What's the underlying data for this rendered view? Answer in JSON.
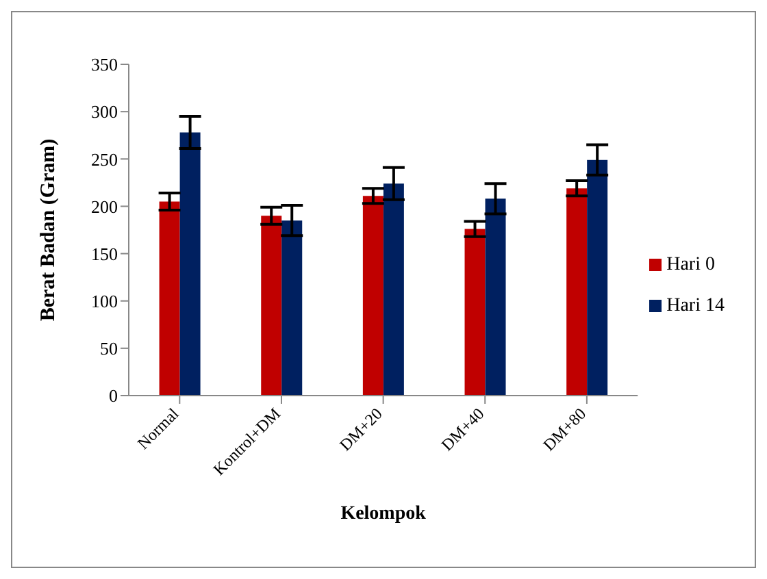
{
  "chart_data": {
    "type": "bar",
    "xlabel": "Kelompok",
    "ylabel": "Berat Badan (Gram)",
    "categories": [
      "Normal",
      "Kontrol+DM",
      "DM+20",
      "DM+40",
      "DM+80"
    ],
    "series": [
      {
        "name": "Hari 0",
        "color": "#c00000",
        "values": [
          205,
          190,
          211,
          176,
          219
        ],
        "errors": [
          9,
          9,
          8,
          8,
          8
        ]
      },
      {
        "name": "Hari 14",
        "color": "#002060",
        "values": [
          278,
          185,
          224,
          208,
          249
        ],
        "errors": [
          17,
          16,
          17,
          16,
          16
        ]
      }
    ],
    "ylim": [
      0,
      350
    ],
    "yticks": [
      0,
      50,
      100,
      150,
      200,
      250,
      300,
      350
    ],
    "grid": false,
    "legend": "right"
  }
}
